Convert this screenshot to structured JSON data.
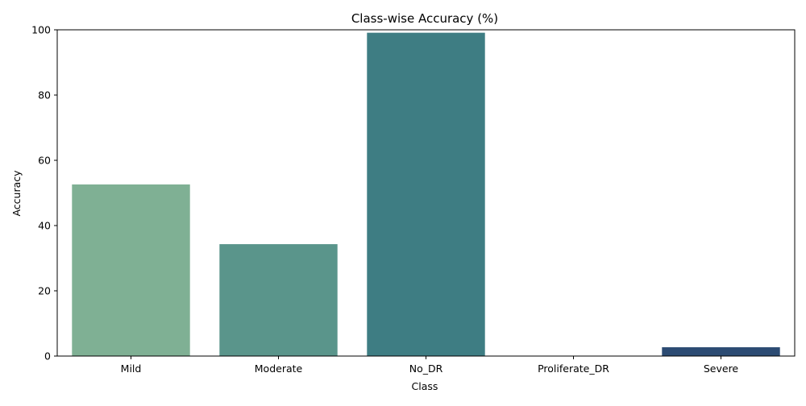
{
  "chart_data": {
    "type": "bar",
    "title": "Class-wise Accuracy (%)",
    "xlabel": "Class",
    "ylabel": "Accuracy",
    "categories": [
      "Mild",
      "Moderate",
      "No_DR",
      "Proliferate_DR",
      "Severe"
    ],
    "values": [
      52.6,
      34.3,
      99.1,
      0,
      2.7
    ],
    "ylim": [
      0,
      100
    ],
    "yticks": [
      "0",
      "20",
      "40",
      "60",
      "80",
      "100"
    ],
    "grid": false,
    "legend": "none",
    "colors": [
      "#7fb094",
      "#5a958b",
      "#3e7d83",
      "#2f5f78",
      "#2c4b73"
    ]
  }
}
